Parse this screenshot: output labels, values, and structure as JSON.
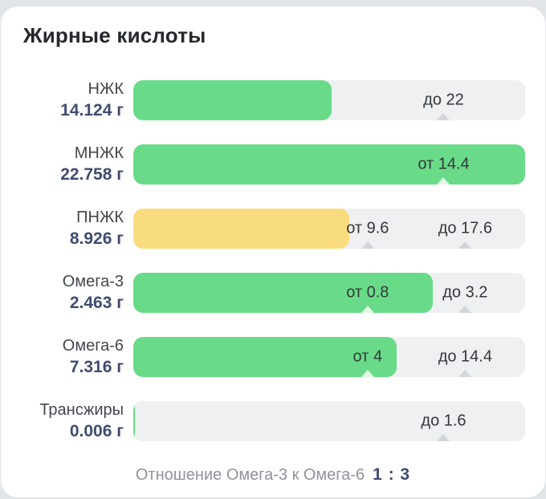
{
  "title": "Жирные кислоты",
  "colors": {
    "green": "#69db88",
    "yellow": "#f9dc7e",
    "track": "#eef0f1",
    "marker_on_fill": "rgba(255,255,255,0.8)",
    "marker_on_track": "#d2d6da"
  },
  "rows": [
    {
      "name": "НЖК",
      "value": "14.124 г",
      "fill_percent": 50.6,
      "fill_color": "green",
      "markers": [
        {
          "label": "до 22",
          "position_percent": 79.2
        }
      ]
    },
    {
      "name": "МНЖК",
      "value": "22.758 г",
      "fill_percent": 100,
      "fill_color": "green",
      "markers": [
        {
          "label": "от 14.4",
          "position_percent": 79.2
        }
      ]
    },
    {
      "name": "ПНЖК",
      "value": "8.926 г",
      "fill_percent": 55.1,
      "fill_color": "yellow",
      "markers": [
        {
          "label": "от 9.6",
          "position_percent": 59.8
        },
        {
          "label": "до 17.6",
          "position_percent": 84.7
        }
      ]
    },
    {
      "name": "Омега-3",
      "value": "2.463 г",
      "fill_percent": 76.5,
      "fill_color": "green",
      "markers": [
        {
          "label": "от 0.8",
          "position_percent": 59.8
        },
        {
          "label": "до 3.2",
          "position_percent": 84.7
        }
      ]
    },
    {
      "name": "Омега-6",
      "value": "7.316 г",
      "fill_percent": 67.3,
      "fill_color": "green",
      "markers": [
        {
          "label": "от 4",
          "position_percent": 59.8
        },
        {
          "label": "до 14.4",
          "position_percent": 84.7
        }
      ]
    },
    {
      "name": "Трансжиры",
      "value": "0.006 г",
      "fill_percent": 0.5,
      "fill_color": "green",
      "markers": [
        {
          "label": "до 1.6",
          "position_percent": 79.2
        }
      ]
    }
  ],
  "footer": {
    "label": "Отношение Омега-3 к Омега-6",
    "ratio": "1 : 3"
  },
  "chart_data": {
    "type": "bar",
    "title": "Жирные кислоты",
    "unit": "г",
    "categories": [
      "НЖК",
      "МНЖК",
      "ПНЖК",
      "Омега-3",
      "Омега-6",
      "Трансжиры"
    ],
    "values": [
      14.124,
      22.758,
      8.926,
      2.463,
      7.316,
      0.006
    ],
    "norms": [
      {
        "category": "НЖК",
        "max": 22
      },
      {
        "category": "МНЖК",
        "min": 14.4
      },
      {
        "category": "ПНЖК",
        "min": 9.6,
        "max": 17.6
      },
      {
        "category": "Омега-3",
        "min": 0.8,
        "max": 3.2
      },
      {
        "category": "Омега-6",
        "min": 4,
        "max": 14.4
      },
      {
        "category": "Трансжиры",
        "max": 1.6
      }
    ],
    "bar_colors": [
      "green",
      "green",
      "yellow",
      "green",
      "green",
      "green"
    ],
    "annotation": "Отношение Омега-3 к Омега-6 1 : 3",
    "legend": false,
    "grid": false
  }
}
